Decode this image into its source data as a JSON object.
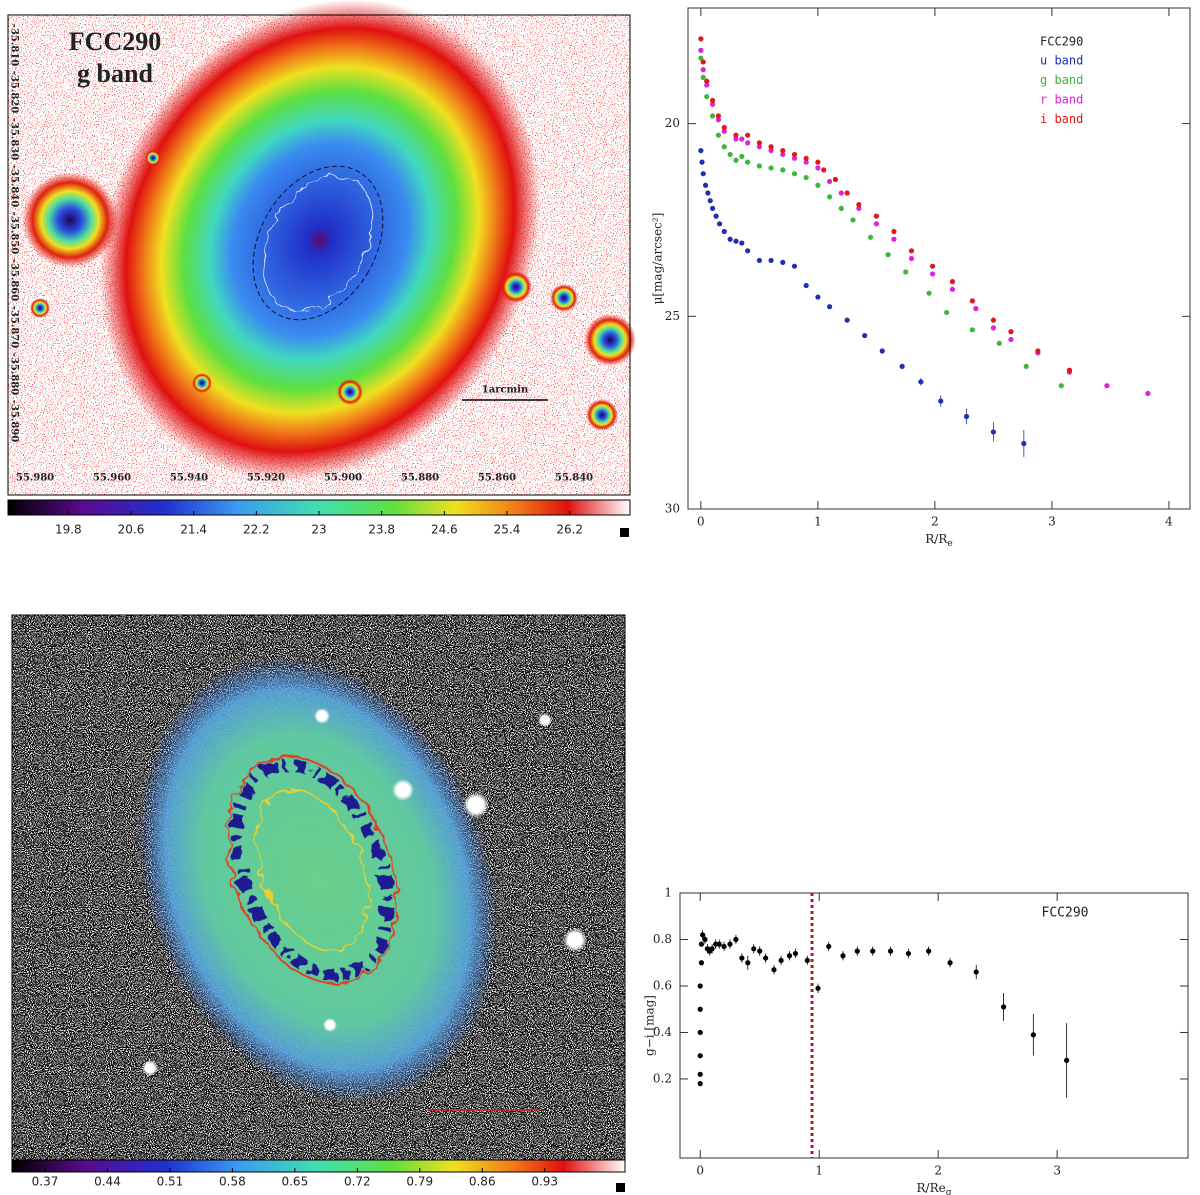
{
  "images": [
    {
      "title": [
        "FCC290",
        "g band"
      ],
      "colorbar_ticks": [
        19.8,
        20.6,
        21.4,
        22.2,
        23,
        23.8,
        24.6,
        25.4,
        26.2
      ],
      "colorbar_lim": [
        19.03,
        26.97
      ],
      "x_labels": [
        "55.980",
        "55.960",
        "55.940",
        "55.920",
        "55.900",
        "55.880",
        "55.860",
        "55.840"
      ],
      "y_labels": [
        "-35.810",
        "-35.820",
        "-35.830",
        "-35.840",
        "-35.850",
        "-35.860",
        "-35.870",
        "-35.880",
        "-35.890"
      ],
      "scale_label": "1arcmin"
    },
    {
      "colorbar_ticks": [
        0.37,
        0.44,
        0.51,
        0.58,
        0.65,
        0.72,
        0.79,
        0.86,
        0.93
      ],
      "colorbar_lim": [
        0.333,
        1.02
      ]
    }
  ],
  "chart_data": [
    {
      "type": "scatter",
      "legend_title": "FCC290",
      "xlabel": "R/R",
      "xlabel_sub": "e",
      "ylabel": "μ[mag/arcsec²]",
      "xlim": [
        -0.11,
        4.18
      ],
      "ylim": [
        30,
        17
      ],
      "xticks": [
        0,
        1,
        2,
        3,
        4
      ],
      "yticks": [
        20,
        25,
        30
      ],
      "series": [
        {
          "name": "u band",
          "color": "#1f2fb0",
          "x": [
            0,
            0.01,
            0.02,
            0.04,
            0.06,
            0.08,
            0.1,
            0.13,
            0.16,
            0.2,
            0.25,
            0.3,
            0.35,
            0.4,
            0.5,
            0.6,
            0.7,
            0.8,
            0.9,
            1.0,
            1.1,
            1.25,
            1.4,
            1.55,
            1.72,
            1.88,
            2.05,
            2.27,
            2.5,
            2.76
          ],
          "values": [
            20.7,
            21.0,
            21.3,
            21.6,
            21.8,
            22.0,
            22.2,
            22.4,
            22.6,
            22.8,
            23.0,
            23.05,
            23.1,
            23.3,
            23.55,
            23.55,
            23.6,
            23.7,
            24.2,
            24.5,
            24.75,
            25.1,
            25.5,
            25.9,
            26.3,
            26.7,
            27.2,
            27.6,
            28.0,
            28.3
          ],
          "errors": [
            null,
            null,
            null,
            null,
            null,
            null,
            null,
            null,
            null,
            null,
            null,
            null,
            null,
            null,
            null,
            null,
            null,
            null,
            null,
            null,
            null,
            null,
            null,
            null,
            0.07,
            0.1,
            0.15,
            0.2,
            0.25,
            0.35
          ]
        },
        {
          "name": "g band",
          "color": "#3fb53a",
          "x": [
            0,
            0.02,
            0.05,
            0.1,
            0.15,
            0.2,
            0.25,
            0.3,
            0.35,
            0.4,
            0.5,
            0.6,
            0.7,
            0.8,
            0.9,
            1.0,
            1.1,
            1.2,
            1.3,
            1.45,
            1.6,
            1.75,
            1.95,
            2.1,
            2.32,
            2.55,
            2.78,
            3.08
          ],
          "values": [
            18.3,
            18.8,
            19.3,
            19.8,
            20.3,
            20.6,
            20.8,
            20.95,
            20.85,
            21.0,
            21.1,
            21.15,
            21.2,
            21.3,
            21.4,
            21.6,
            21.9,
            22.2,
            22.5,
            22.95,
            23.4,
            23.85,
            24.4,
            24.9,
            25.35,
            25.7,
            26.3,
            26.8
          ]
        },
        {
          "name": "r band",
          "color": "#e020e0",
          "x": [
            0,
            0.02,
            0.05,
            0.1,
            0.15,
            0.2,
            0.3,
            0.35,
            0.4,
            0.5,
            0.6,
            0.7,
            0.8,
            0.9,
            1.0,
            1.1,
            1.2,
            1.35,
            1.5,
            1.65,
            1.8,
            1.98,
            2.15,
            2.35,
            2.5,
            2.65,
            2.88,
            3.15,
            3.47,
            3.82
          ],
          "values": [
            18.1,
            18.6,
            19.0,
            19.5,
            19.9,
            20.2,
            20.4,
            20.4,
            20.5,
            20.6,
            20.7,
            20.8,
            20.9,
            21.0,
            21.15,
            21.5,
            21.8,
            22.2,
            22.6,
            23.0,
            23.5,
            23.9,
            24.3,
            24.8,
            25.3,
            25.6,
            25.95,
            26.45,
            26.8,
            27.0
          ]
        },
        {
          "name": "i band",
          "color": "#e01818",
          "x": [
            0,
            0.02,
            0.05,
            0.1,
            0.15,
            0.2,
            0.3,
            0.4,
            0.5,
            0.6,
            0.7,
            0.8,
            0.9,
            1.0,
            1.05,
            1.15,
            1.25,
            1.35,
            1.5,
            1.65,
            1.8,
            1.98,
            2.15,
            2.32,
            2.5,
            2.65,
            2.88,
            3.15
          ],
          "values": [
            17.8,
            18.4,
            18.9,
            19.4,
            19.8,
            20.1,
            20.3,
            20.3,
            20.5,
            20.6,
            20.7,
            20.8,
            20.9,
            21.0,
            21.2,
            21.45,
            21.8,
            22.1,
            22.4,
            22.8,
            23.3,
            23.7,
            24.1,
            24.6,
            25.1,
            25.4,
            25.9,
            26.4
          ]
        }
      ]
    },
    {
      "type": "scatter",
      "annotation": "FCC290",
      "xlabel": "R/Re",
      "xlabel_sub": "g",
      "ylabel": "g−i [mag]",
      "xlim": [
        -0.17,
        4.1
      ],
      "ylim": [
        -0.14,
        1
      ],
      "xticks": [
        0,
        1,
        2,
        3
      ],
      "yticks": [
        0.2,
        0.4,
        0.6,
        0.8,
        1
      ],
      "vline": 0.94,
      "vline_color": "#c0161b",
      "series": [
        {
          "color": "#000000",
          "x": [
            0,
            0,
            0,
            0,
            0,
            0,
            0.01,
            0.01,
            0.02,
            0.04,
            0.06,
            0.08,
            0.1,
            0.13,
            0.16,
            0.2,
            0.25,
            0.3,
            0.35,
            0.4,
            0.45,
            0.5,
            0.55,
            0.62,
            0.68,
            0.75,
            0.8,
            0.9,
            0.99,
            1.08,
            1.2,
            1.32,
            1.45,
            1.6,
            1.75,
            1.92,
            2.1,
            2.32,
            2.55,
            2.8,
            3.08
          ],
          "values": [
            0.18,
            0.22,
            0.3,
            0.4,
            0.5,
            0.6,
            0.7,
            0.78,
            0.82,
            0.8,
            0.76,
            0.75,
            0.76,
            0.78,
            0.78,
            0.77,
            0.78,
            0.8,
            0.72,
            0.7,
            0.76,
            0.75,
            0.72,
            0.67,
            0.71,
            0.73,
            0.74,
            0.71,
            0.59,
            0.77,
            0.73,
            0.75,
            0.75,
            0.75,
            0.74,
            0.75,
            0.7,
            0.66,
            0.51,
            0.39,
            0.28
          ],
          "errors": [
            0.01,
            0.01,
            0.01,
            0.01,
            0.01,
            0.01,
            0.01,
            0.01,
            0.02,
            0.02,
            0.02,
            0.02,
            0.02,
            0.02,
            0.02,
            0.02,
            0.02,
            0.02,
            0.02,
            0.03,
            0.02,
            0.02,
            0.02,
            0.02,
            0.02,
            0.02,
            0.02,
            0.02,
            0.02,
            0.02,
            0.02,
            0.02,
            0.02,
            0.02,
            0.02,
            0.02,
            0.02,
            0.03,
            0.06,
            0.09,
            0.16
          ]
        }
      ]
    }
  ]
}
